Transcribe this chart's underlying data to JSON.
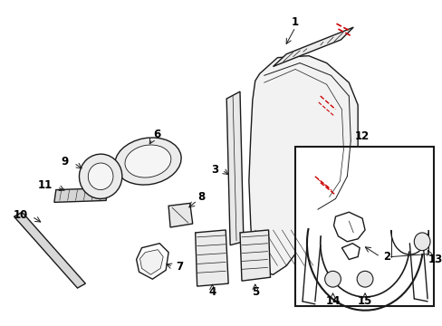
{
  "bg_color": "#ffffff",
  "line_color": "#1a1a1a",
  "red_line_color": "#cc0000",
  "label_color": "#000000",
  "fig_width": 4.89,
  "fig_height": 3.6,
  "dpi": 100
}
